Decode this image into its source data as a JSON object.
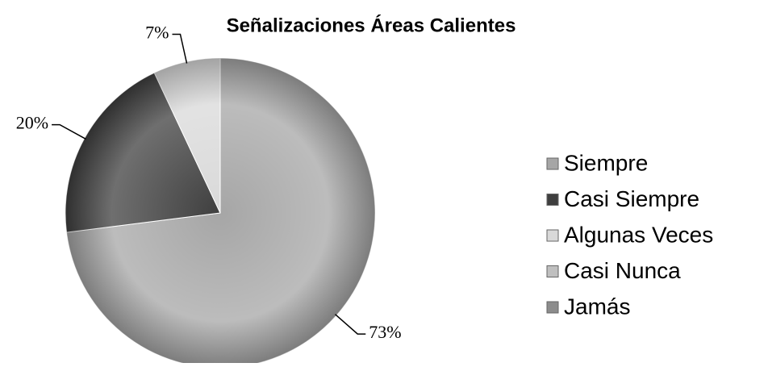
{
  "chart_data": {
    "type": "pie",
    "title": "Señalizaciones Áreas Calientes",
    "categories": [
      "Siempre",
      "Casi Siempre",
      "Algunas Veces",
      "Casi Nunca",
      "Jamás"
    ],
    "values": [
      73,
      20,
      7,
      0,
      0
    ],
    "value_labels": [
      "73%",
      "20%",
      "7%",
      null,
      null
    ],
    "colors": [
      "#a6a6a6",
      "#3f3f3f",
      "#d9d9d9",
      "#bfbfbf",
      "#8c8c8c"
    ],
    "legend": "right"
  }
}
